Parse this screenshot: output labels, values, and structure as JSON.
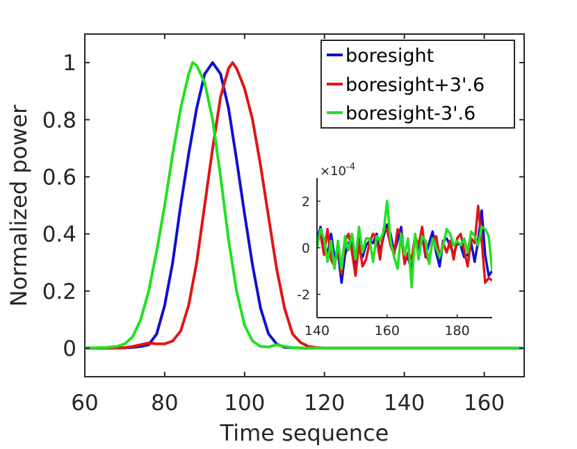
{
  "chart_data": {
    "type": "line",
    "xlabel": "Time sequence",
    "ylabel": "Normalized power",
    "xlim": [
      60,
      170
    ],
    "ylim": [
      -0.1,
      1.1
    ],
    "xticks": [
      60,
      80,
      100,
      120,
      140,
      160
    ],
    "yticks": [
      0,
      0.2,
      0.4,
      0.6,
      0.8,
      1
    ],
    "xtick_labels": [
      "60",
      "80",
      "100",
      "120",
      "140",
      "160"
    ],
    "ytick_labels": [
      "0",
      "0.2",
      "0.4",
      "0.6",
      "0.8",
      "1"
    ],
    "legend_position": "top-right",
    "series": [
      {
        "name": "boresight",
        "color": "#1010d0",
        "x": [
          60,
          65,
          70,
          72,
          74,
          76,
          78,
          80,
          82,
          84,
          86,
          88,
          90,
          92,
          94,
          96,
          98,
          100,
          102,
          104,
          106,
          108,
          110,
          115,
          120,
          130,
          140,
          150,
          160,
          170
        ],
        "y": [
          0,
          0,
          0.001,
          0.003,
          0.006,
          0.012,
          0.05,
          0.15,
          0.3,
          0.5,
          0.68,
          0.84,
          0.96,
          1.0,
          0.96,
          0.84,
          0.66,
          0.47,
          0.29,
          0.14,
          0.05,
          0.015,
          0.003,
          0,
          0,
          0,
          0,
          0,
          0,
          0
        ]
      },
      {
        "name": "boresight+3'.6",
        "color": "#e01515",
        "x": [
          60,
          65,
          70,
          72,
          74,
          76,
          78,
          80,
          82,
          84,
          86,
          88,
          90,
          92,
          94,
          96,
          97,
          98,
          100,
          102,
          104,
          106,
          108,
          110,
          112,
          114,
          116,
          118,
          120,
          130,
          140,
          150,
          160,
          170
        ],
        "y": [
          0,
          0,
          0.002,
          0.006,
          0.012,
          0.018,
          0.015,
          0.015,
          0.025,
          0.06,
          0.15,
          0.3,
          0.5,
          0.7,
          0.88,
          0.98,
          1.0,
          0.98,
          0.91,
          0.8,
          0.64,
          0.46,
          0.28,
          0.14,
          0.05,
          0.02,
          0.006,
          0.002,
          0,
          0,
          0,
          0,
          0,
          0
        ]
      },
      {
        "name": "boresight-3'.6",
        "color": "#22e022",
        "x": [
          60,
          65,
          68,
          70,
          72,
          74,
          76,
          78,
          80,
          82,
          84,
          86,
          87,
          88,
          90,
          92,
          94,
          96,
          98,
          100,
          102,
          104,
          106,
          108,
          110,
          112,
          115,
          120,
          130,
          140,
          150,
          160,
          170
        ],
        "y": [
          0,
          0.002,
          0.006,
          0.015,
          0.04,
          0.1,
          0.2,
          0.34,
          0.5,
          0.68,
          0.84,
          0.96,
          1.0,
          0.99,
          0.93,
          0.8,
          0.6,
          0.38,
          0.2,
          0.08,
          0.025,
          0.006,
          0.004,
          0.012,
          0.006,
          0.002,
          0,
          0,
          0,
          0,
          0,
          0,
          0
        ]
      }
    ],
    "inset": {
      "type": "line",
      "exponent_label": "×10",
      "exponent_power": "-4",
      "xlim": [
        140,
        190
      ],
      "ylim": [
        -3,
        3
      ],
      "xticks": [
        140,
        160,
        180
      ],
      "yticks": [
        -2,
        0,
        2
      ],
      "xtick_labels": [
        "140",
        "160",
        "180"
      ],
      "ytick_labels": [
        "-2",
        "0",
        "2"
      ],
      "x": [
        140,
        141,
        142,
        143,
        144,
        145,
        146,
        147,
        148,
        149,
        150,
        151,
        152,
        153,
        154,
        155,
        156,
        157,
        158,
        159,
        160,
        161,
        162,
        163,
        164,
        165,
        166,
        167,
        168,
        169,
        170,
        171,
        172,
        173,
        174,
        175,
        176,
        177,
        178,
        179,
        180,
        181,
        182,
        183,
        184,
        185,
        186,
        187,
        188,
        189,
        190
      ],
      "series": [
        {
          "name": "boresight",
          "color": "#1010d0",
          "y": [
            0.3,
            0.9,
            0.2,
            -0.3,
            0.6,
            -0.4,
            -0.2,
            -1.5,
            -0.3,
            0.2,
            0.3,
            -0.8,
            0.5,
            -0.4,
            0.1,
            0.3,
            0.2,
            0.6,
            -0.2,
            0.5,
            1.0,
            0.6,
            -0.2,
            0.3,
            0.9,
            -0.6,
            -0.4,
            -1.0,
            0.4,
            -0.2,
            0.6,
            -0.4,
            0.2,
            0.7,
            -0.2,
            -0.8,
            0.3,
            0.4,
            0.1,
            -0.3,
            0.2,
            0.1,
            -0.4,
            -0.3,
            0.2,
            -0.6,
            0.3,
            1.6,
            -0.3,
            -1.2,
            -1.0
          ]
        },
        {
          "name": "boresight+3'.6",
          "color": "#e01515",
          "y": [
            0.2,
            0.6,
            -0.3,
            0.8,
            -0.5,
            -0.8,
            0.1,
            -1.1,
            0.3,
            0.6,
            -0.2,
            -1.2,
            0.2,
            -0.8,
            -0.5,
            0.2,
            0.6,
            0.4,
            -0.5,
            0.8,
            0.8,
            0.1,
            -0.3,
            0.8,
            0.6,
            -0.7,
            -0.2,
            -0.5,
            0.5,
            0.1,
            0.9,
            -0.3,
            -0.6,
            0.3,
            0.5,
            -0.4,
            0.2,
            -0.2,
            0.3,
            -0.5,
            0.4,
            0.6,
            -0.1,
            -0.8,
            0.4,
            0.2,
            1.8,
            0.3,
            -1.5,
            -1.3,
            -1.4
          ]
        },
        {
          "name": "boresight-3'.6",
          "color": "#22e022",
          "y": [
            0.0,
            0.8,
            0.4,
            -0.6,
            0.3,
            -0.9,
            0.3,
            -0.9,
            0.5,
            -0.1,
            0.6,
            -0.5,
            0.9,
            -0.2,
            0.4,
            0.4,
            -0.6,
            0.5,
            0.3,
            0.7,
            2.0,
            0.3,
            -0.4,
            -0.9,
            0.6,
            -0.3,
            0.4,
            -1.7,
            0.6,
            -0.5,
            0.5,
            0.3,
            -0.7,
            0.4,
            0.0,
            -0.4,
            0.1,
            0.8,
            0.6,
            0.1,
            0.3,
            0.1,
            0.4,
            -0.2,
            0.7,
            0.5,
            0.1,
            0.9,
            0.8,
            0.5,
            -1.0
          ]
        }
      ]
    }
  }
}
